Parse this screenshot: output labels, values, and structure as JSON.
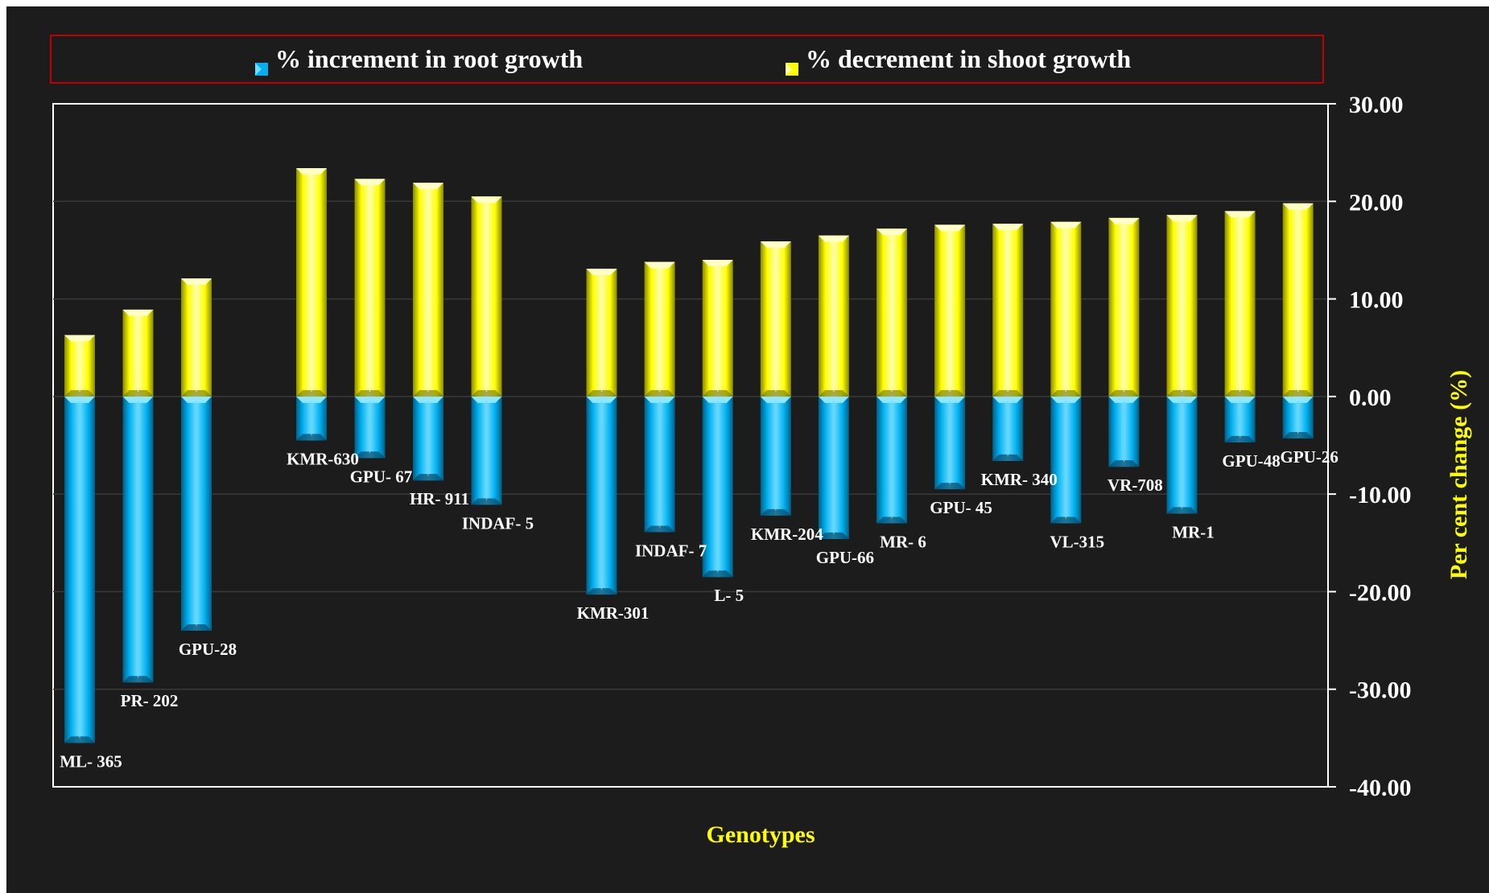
{
  "colors": {
    "background": "#1c1c1c",
    "root": "#00b0f0",
    "shoot": "#ffff00",
    "legend_border": "#c00000",
    "axis_title": "#ffff00",
    "text": "#ffffff"
  },
  "chart_data": {
    "type": "bar",
    "title": "",
    "xlabel": "Genotypes",
    "ylabel": "Per cent change (%)",
    "ylim": [
      -40,
      30
    ],
    "y_axis_position": "right",
    "yticks": [
      30,
      20,
      10,
      0,
      -10,
      -20,
      -30,
      -40
    ],
    "ytick_labels": [
      "30.00",
      "20.00",
      "10.00",
      "0.00",
      "-10.00",
      "-20.00",
      "-30.00",
      "-40.00"
    ],
    "grid": true,
    "legend_position": "top",
    "categories": [
      "ML- 365",
      "PR- 202",
      "GPU-28",
      "KMR-630",
      "GPU- 67",
      "HR- 911",
      "INDAF- 5",
      "KMR-301",
      "INDAF- 7",
      "L- 5",
      "KMR-204",
      "GPU-66",
      "MR- 6",
      "GPU- 45",
      "KMR- 340",
      "VL-315",
      "VR-708",
      "MR-1",
      "GPU-48",
      "GPU-26"
    ],
    "series": [
      {
        "name": "% increment in root growth",
        "values": [
          -35.5,
          -29.3,
          -24.0,
          -4.5,
          -6.3,
          -8.6,
          -11.1,
          -20.3,
          -13.9,
          -18.5,
          -12.2,
          -14.6,
          -13.0,
          -9.5,
          -6.6,
          -13.0,
          -7.2,
          -12.0,
          -4.7,
          -4.3
        ]
      },
      {
        "name": "% decrement in shoot growth",
        "values": [
          6.3,
          8.9,
          12.1,
          23.4,
          22.3,
          21.9,
          20.5,
          13.1,
          13.8,
          14.0,
          15.9,
          16.5,
          17.2,
          17.6,
          17.7,
          17.9,
          18.3,
          18.6,
          19.0,
          19.8
        ]
      }
    ]
  }
}
